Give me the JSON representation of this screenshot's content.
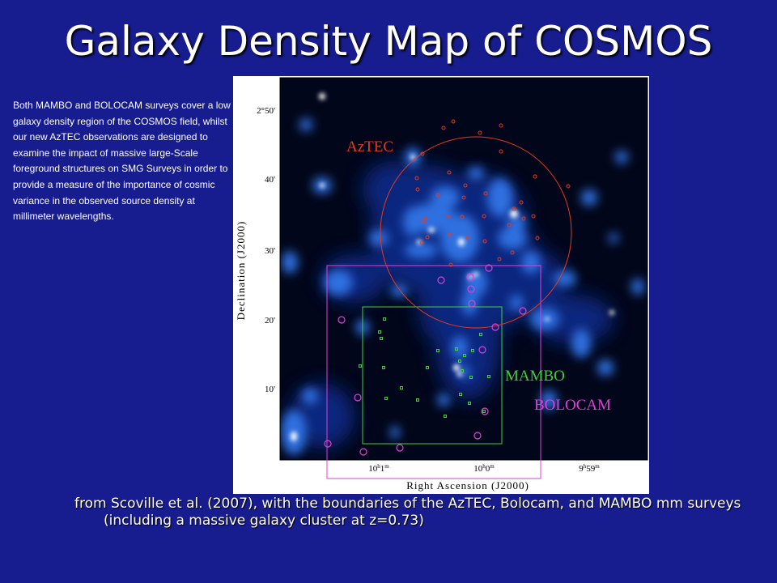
{
  "slide": {
    "title": "Galaxy Density Map of COSMOS",
    "side_note": "Both MAMBO and BOLOCAM surveys cover a low galaxy density region of the COSMOS field, whilst our new AzTEC observations are designed to examine the impact of massive large-Scale foreground structures on SMG Surveys in order to provide a measure of the importance of cosmic variance in the observed source density at millimeter wavelengths.",
    "caption": "from Scoville et al. (2007), with the boundaries of the AzTEC, Bolocam, and MAMBO mm surveys (including a massive galaxy cluster at z=0.73)"
  },
  "figure": {
    "x_axis_label": "Right Ascension (J2000)",
    "y_axis_label": "Declination (J2000)",
    "x_ticks": [
      {
        "main": "10",
        "sup1": "h",
        "mid": "1",
        "sup2": "m"
      },
      {
        "main": "10",
        "sup1": "h",
        "mid": "0",
        "sup2": "m"
      },
      {
        "main": "9",
        "sup1": "h",
        "mid": "59",
        "sup2": "m"
      }
    ],
    "y_ticks": [
      "2°50'",
      "40'",
      "30'",
      "20'",
      "10'"
    ],
    "regions": [
      {
        "name": "AzTEC",
        "label": "AzTEC",
        "color": "#e8391f"
      },
      {
        "name": "MAMBO",
        "label": "MAMBO",
        "color": "#40d040"
      },
      {
        "name": "BOLOCAM",
        "label": "BOLOCAM",
        "color": "#e040d8"
      }
    ],
    "colors": {
      "map_dark": "#02061a",
      "map_glow": "#2f6fe0",
      "map_core": "#ffffff"
    }
  }
}
